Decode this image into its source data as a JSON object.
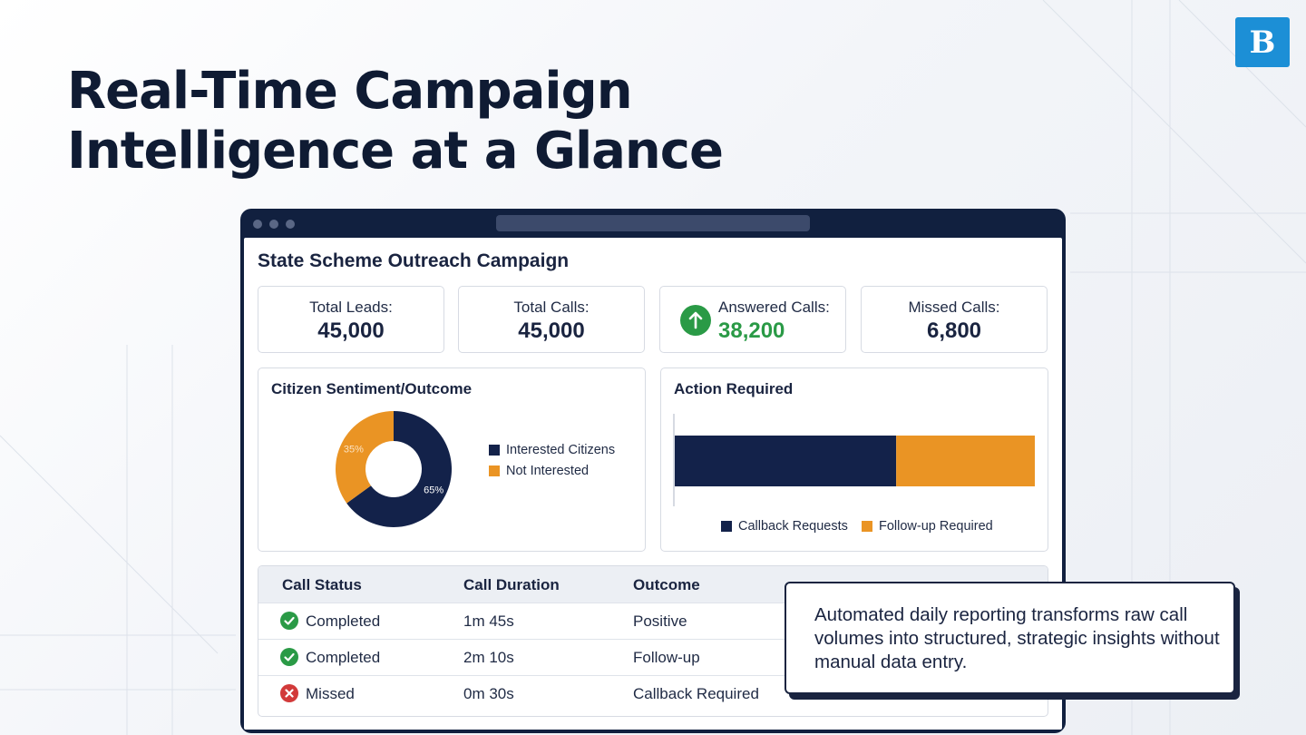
{
  "logo": {
    "glyph": "B"
  },
  "headline": {
    "line1": "Real-Time Campaign",
    "line2": "Intelligence at a Glance"
  },
  "campaign": {
    "title": "State Scheme Outreach Campaign"
  },
  "stats": [
    {
      "label": "Total Leads:",
      "value": "45,000"
    },
    {
      "label": "Total Calls:",
      "value": "45,000"
    },
    {
      "label": "Answered Calls:",
      "value": "38,200",
      "icon": "arrow-up-icon",
      "color": "#2a9a46"
    },
    {
      "label": "Missed Calls:",
      "value": "6,800"
    }
  ],
  "sentiment": {
    "title": "Citizen Sentiment/Outcome",
    "chart_data": {
      "type": "pie",
      "style": "donut",
      "slices": [
        {
          "label": "Interested Citizens",
          "value": 65,
          "value_label": "65%",
          "color": "#13224a"
        },
        {
          "label": "Not Interested",
          "value": 35,
          "value_label": "35%",
          "color": "#ea9424"
        }
      ],
      "legend": "right"
    }
  },
  "action": {
    "title": "Action Required",
    "chart_data": {
      "type": "bar",
      "orientation": "horizontal",
      "stacked": true,
      "series": [
        {
          "name": "Callback Requests",
          "values": [
            61.5
          ],
          "color": "#13224a"
        },
        {
          "name": "Follow-up Required",
          "values": [
            38.5
          ],
          "color": "#ea9424"
        }
      ],
      "legend": "bottom"
    }
  },
  "table": {
    "headers": [
      "Call Status",
      "Call Duration",
      "Outcome"
    ],
    "rows": [
      {
        "status": "Completed",
        "status_icon": "check-circle-icon",
        "duration": "1m 45s",
        "outcome": "Positive"
      },
      {
        "status": "Completed",
        "status_icon": "check-circle-icon",
        "duration": "2m 10s",
        "outcome": "Follow-up"
      },
      {
        "status": "Missed",
        "status_icon": "x-circle-icon",
        "duration": "0m 30s",
        "outcome": "Callback Required"
      }
    ]
  },
  "callout": {
    "text": "Automated daily reporting transforms raw call volumes into structured, strategic insights without manual data entry."
  },
  "colors": {
    "navy": "#13224a",
    "orange": "#ea9424",
    "green": "#2a9a46",
    "red": "#d23a3a",
    "logo_blue": "#1c8fd6"
  }
}
